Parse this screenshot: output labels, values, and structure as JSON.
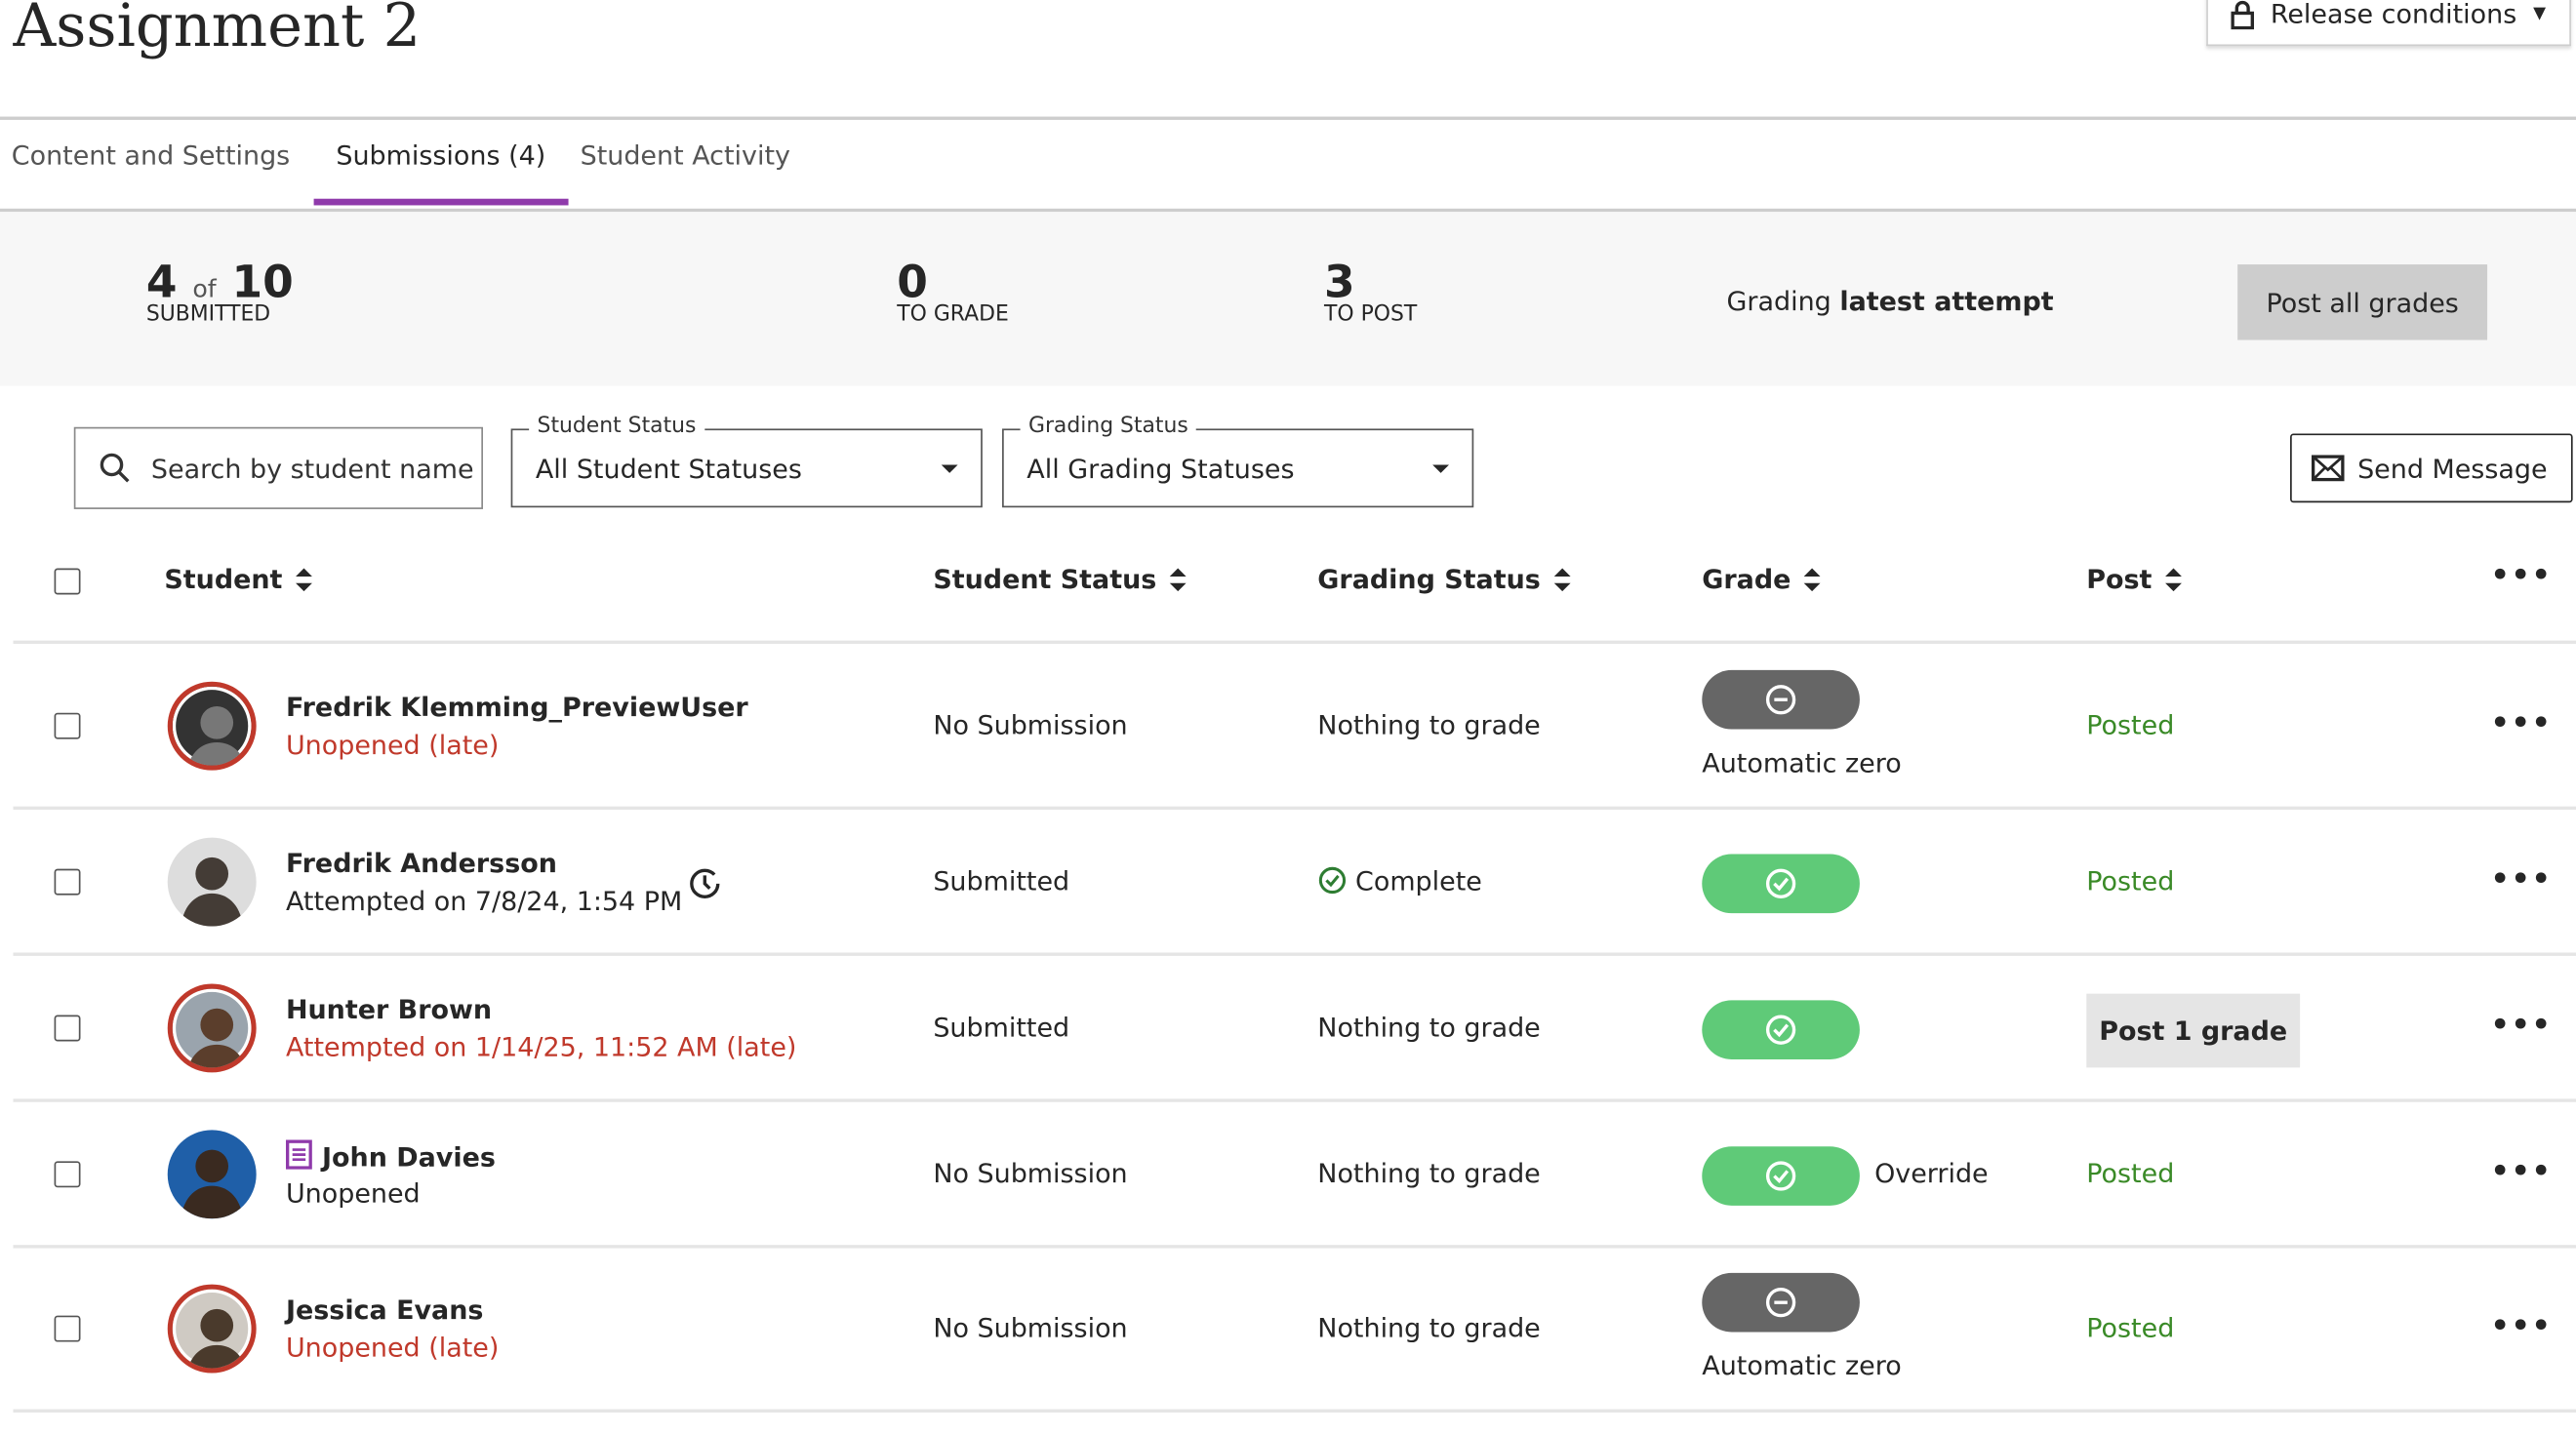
{
  "page": {
    "title": "Assignment 2",
    "release_conditions": "Release conditions"
  },
  "tabs": [
    {
      "label": "Content and Settings",
      "active": false
    },
    {
      "label": "Submissions (4)",
      "active": true
    },
    {
      "label": "Student Activity",
      "active": false
    }
  ],
  "summary": {
    "submitted": "4",
    "of": "of",
    "total": "10",
    "submitted_label": "SUBMITTED",
    "to_grade": "0",
    "to_grade_label": "TO GRADE",
    "to_post": "3",
    "to_post_label": "TO POST",
    "grading_prefix": "Grading",
    "grading_bold": "latest attempt",
    "post_all": "Post all grades"
  },
  "filters": {
    "search_placeholder": "Search by student name",
    "student_status_label": "Student Status",
    "student_status_value": "All Student Statuses",
    "grading_status_label": "Grading Status",
    "grading_status_value": "All Grading Statuses",
    "send_message": "Send Message"
  },
  "columns": [
    "Student",
    "Student Status",
    "Grading Status",
    "Grade",
    "Post"
  ],
  "colors": {
    "accent": "#8f3aab",
    "late": "#c0392b",
    "posted": "#3a8a27",
    "grade_ok": "#5fca78",
    "grade_zero": "#666666"
  },
  "rows": [
    {
      "name": "Fredrik Klemming_PreviewUser",
      "detail": "Unopened (late)",
      "student_status": "No Submission",
      "grading_status": "Nothing to grade",
      "grade": "zero",
      "grade_note": "Automatic zero",
      "post": "Posted"
    },
    {
      "name": "Fredrik Andersson",
      "detail": "Attempted on 7/8/24, 1:54 PM",
      "student_status": "Submitted",
      "grading_status": "Complete",
      "grade": "ok",
      "grade_note": "",
      "post": "Posted"
    },
    {
      "name": "Hunter Brown",
      "detail": "Attempted on 1/14/25, 11:52 AM (late)",
      "student_status": "Submitted",
      "grading_status": "Nothing to grade",
      "grade": "ok",
      "grade_note": "",
      "post": "Post 1 grade"
    },
    {
      "name": "John Davies",
      "detail": "Unopened",
      "student_status": "No Submission",
      "grading_status": "Nothing to grade",
      "grade": "ok",
      "grade_note": "Override",
      "post": "Posted"
    },
    {
      "name": "Jessica Evans",
      "detail": "Unopened (late)",
      "student_status": "No Submission",
      "grading_status": "Nothing to grade",
      "grade": "zero",
      "grade_note": "Automatic zero",
      "post": "Posted"
    }
  ]
}
